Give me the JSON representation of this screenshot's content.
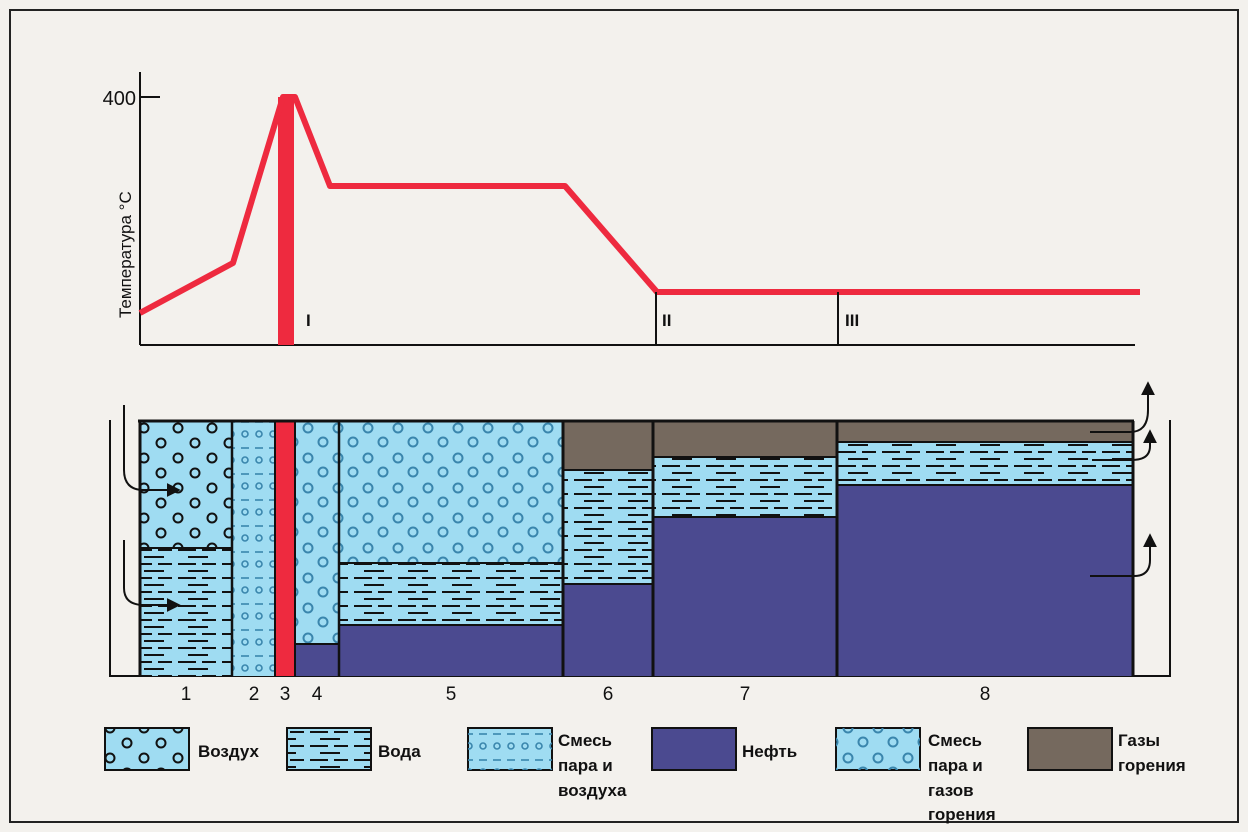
{
  "graph": {
    "y_axis_label": "Температура °C",
    "y_tick_label": "400",
    "zone_labels": [
      "I",
      "II",
      "III"
    ],
    "curve_color": "#ee2a3f"
  },
  "column_numbers": [
    "1",
    "2",
    "3",
    "4",
    "5",
    "6",
    "7",
    "8"
  ],
  "legend": {
    "air": {
      "label": "Воздух"
    },
    "water": {
      "label": "Вода"
    },
    "steam_air": {
      "lines": [
        "Смесь",
        "пара и",
        "воздуха"
      ]
    },
    "oil": {
      "label": "Нефть"
    },
    "steam_gas": {
      "lines": [
        "Смесь",
        "пара и",
        "газов",
        "горения"
      ]
    },
    "combustion_gases": {
      "lines": [
        "Газы",
        "горения"
      ]
    }
  },
  "colors": {
    "light_blue": "#9fdcf2",
    "oil": "#4b4a90",
    "gas": "#75695e",
    "front": "#ee2a3f",
    "ink": "#111111"
  }
}
